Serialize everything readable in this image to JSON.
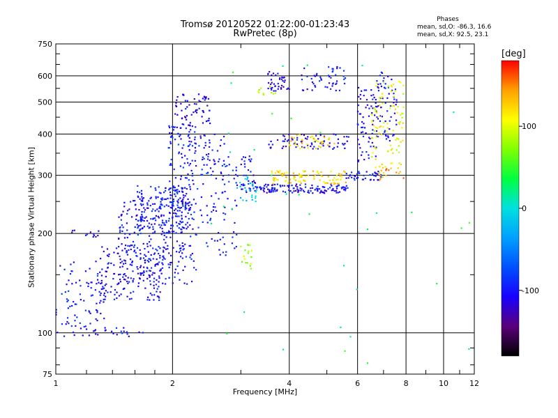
{
  "chart_data": {
    "type": "scatter",
    "title": "Tromsø 20120522 01:22:00-01:23:43",
    "subtitle": "RwPretec (8p)",
    "xlabel": "Frequency [MHz]",
    "ylabel": "Stationary phase Virtual Height [km]",
    "x_scale": "log",
    "y_scale": "log",
    "xlim": [
      1,
      12
    ],
    "ylim": [
      75,
      750
    ],
    "x_ticks": [
      1,
      2,
      4,
      6,
      8,
      10,
      12
    ],
    "y_ticks": [
      75,
      100,
      200,
      300,
      400,
      500,
      600,
      750
    ],
    "grid": true,
    "phases_box": {
      "heading": "Phases",
      "line1": "mean, sd,O: -86.3, 16.6",
      "line2": "mean, sd,X:  92.5, 23.1"
    },
    "colorbar": {
      "unit": "[deg]",
      "range": [
        -180,
        180
      ],
      "ticks": [
        "100",
        "0",
        "-100"
      ],
      "tick_values": [
        100,
        0,
        -100
      ],
      "colors": [
        "#000000",
        "#5a007a",
        "#1a00ff",
        "#0050ff",
        "#00a0ff",
        "#00e0e0",
        "#00ff40",
        "#80ff00",
        "#ffff00",
        "#ffa000",
        "#ff0000"
      ]
    },
    "point_groups": [
      {
        "f": [
          1.0,
          1.35
        ],
        "h": [
          100,
          165
        ],
        "phase": -100,
        "n": 90
      },
      {
        "f": [
          1.3,
          1.9
        ],
        "h": [
          125,
          185
        ],
        "phase": -105,
        "n": 160
      },
      {
        "f": [
          1.45,
          2.3
        ],
        "h": [
          140,
          260
        ],
        "phase": -100,
        "n": 260
      },
      {
        "f": [
          1.6,
          2.2
        ],
        "h": [
          200,
          280
        ],
        "phase": -95,
        "n": 160
      },
      {
        "f": [
          1.95,
          2.3
        ],
        "h": [
          230,
          430
        ],
        "phase": -100,
        "n": 120
      },
      {
        "f": [
          2.0,
          2.5
        ],
        "h": [
          420,
          530
        ],
        "phase": -110,
        "n": 60
      },
      {
        "f": [
          2.3,
          2.95
        ],
        "h": [
          170,
          330
        ],
        "phase": -95,
        "n": 90
      },
      {
        "f": [
          2.2,
          2.8
        ],
        "h": [
          330,
          400
        ],
        "phase": -100,
        "n": 40
      },
      {
        "f": [
          1.0,
          1.7
        ],
        "h": [
          97,
          104
        ],
        "phase": -105,
        "n": 25
      },
      {
        "f": [
          1.1,
          1.3
        ],
        "h": [
          195,
          205
        ],
        "phase": -110,
        "n": 12
      },
      {
        "f": [
          3.0,
          3.3
        ],
        "h": [
          260,
          345
        ],
        "phase": -100,
        "n": 40
      },
      {
        "f": [
          3.3,
          5.7
        ],
        "h": [
          265,
          282
        ],
        "phase": -105,
        "n": 130
      },
      {
        "f": [
          3.5,
          5.7
        ],
        "h": [
          360,
          400
        ],
        "phase": -110,
        "n": 70
      },
      {
        "f": [
          3.5,
          4.0
        ],
        "h": [
          540,
          620
        ],
        "phase": -110,
        "n": 40
      },
      {
        "f": [
          4.3,
          5.6
        ],
        "h": [
          540,
          640
        ],
        "phase": -100,
        "n": 50
      },
      {
        "f": [
          5.6,
          6.9
        ],
        "h": [
          290,
          310
        ],
        "phase": -100,
        "n": 40
      },
      {
        "f": [
          6.0,
          6.8
        ],
        "h": [
          330,
          560
        ],
        "phase": -105,
        "n": 70
      },
      {
        "f": [
          6.7,
          7.6
        ],
        "h": [
          380,
          620
        ],
        "phase": -100,
        "n": 60
      },
      {
        "f": [
          2.9,
          3.3
        ],
        "h": [
          250,
          300
        ],
        "phase": -15,
        "n": 25
      },
      {
        "f": [
          3.6,
          5.6
        ],
        "h": [
          282,
          310
        ],
        "phase": 120,
        "n": 90
      },
      {
        "f": [
          4.0,
          5.3
        ],
        "h": [
          360,
          400
        ],
        "phase": 120,
        "n": 40
      },
      {
        "f": [
          6.5,
          7.9
        ],
        "h": [
          310,
          600
        ],
        "phase": 105,
        "n": 90
      },
      {
        "f": [
          6.8,
          7.9
        ],
        "h": [
          290,
          330
        ],
        "phase": 140,
        "n": 20
      },
      {
        "f": [
          3.0,
          3.2
        ],
        "h": [
          155,
          185
        ],
        "phase": 80,
        "n": 18
      },
      {
        "f": [
          3.3,
          3.7
        ],
        "h": [
          520,
          560
        ],
        "phase": 80,
        "n": 10
      },
      {
        "f": [
          2.5,
          12
        ],
        "h": [
          80,
          700
        ],
        "phase": 30,
        "n": 35
      }
    ]
  }
}
